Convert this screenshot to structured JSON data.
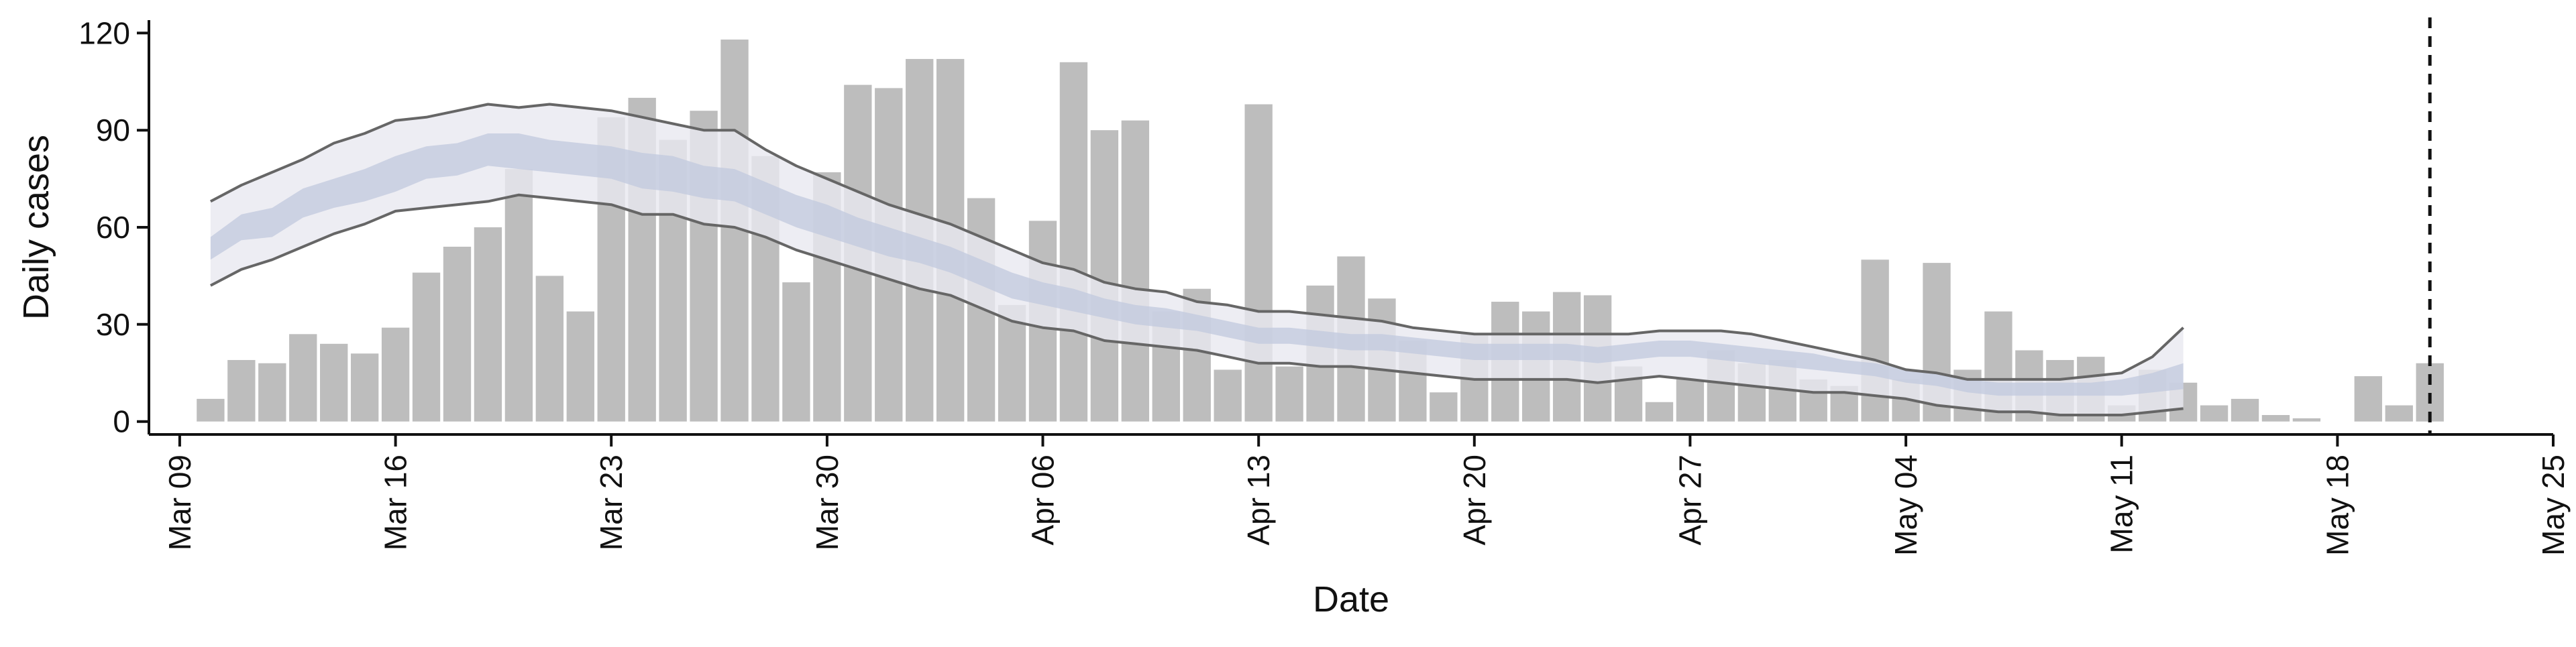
{
  "chart_data": {
    "type": "bar",
    "xlabel": "Date",
    "ylabel": "Daily cases",
    "ylim": [
      -4,
      124
    ],
    "xlim": [
      "2020-03-08",
      "2020-05-25"
    ],
    "xticks": [
      {
        "date": "2020-03-09",
        "label": "Mar 09"
      },
      {
        "date": "2020-03-16",
        "label": "Mar 16"
      },
      {
        "date": "2020-03-23",
        "label": "Mar 23"
      },
      {
        "date": "2020-03-30",
        "label": "Mar 30"
      },
      {
        "date": "2020-04-06",
        "label": "Apr 06"
      },
      {
        "date": "2020-04-13",
        "label": "Apr 13"
      },
      {
        "date": "2020-04-20",
        "label": "Apr 20"
      },
      {
        "date": "2020-04-27",
        "label": "Apr 27"
      },
      {
        "date": "2020-05-04",
        "label": "May 04"
      },
      {
        "date": "2020-05-11",
        "label": "May 11"
      },
      {
        "date": "2020-05-18",
        "label": "May 18"
      },
      {
        "date": "2020-05-25",
        "label": "May 25"
      }
    ],
    "yticks": [
      0,
      30,
      60,
      90,
      120
    ],
    "bars": {
      "dates": [
        "2020-03-10",
        "2020-03-11",
        "2020-03-12",
        "2020-03-13",
        "2020-03-14",
        "2020-03-15",
        "2020-03-16",
        "2020-03-17",
        "2020-03-18",
        "2020-03-19",
        "2020-03-20",
        "2020-03-21",
        "2020-03-22",
        "2020-03-23",
        "2020-03-24",
        "2020-03-25",
        "2020-03-26",
        "2020-03-27",
        "2020-03-28",
        "2020-03-29",
        "2020-03-30",
        "2020-03-31",
        "2020-04-01",
        "2020-04-02",
        "2020-04-03",
        "2020-04-04",
        "2020-04-05",
        "2020-04-06",
        "2020-04-07",
        "2020-04-08",
        "2020-04-09",
        "2020-04-10",
        "2020-04-11",
        "2020-04-12",
        "2020-04-13",
        "2020-04-14",
        "2020-04-15",
        "2020-04-16",
        "2020-04-17",
        "2020-04-18",
        "2020-04-19",
        "2020-04-20",
        "2020-04-21",
        "2020-04-22",
        "2020-04-23",
        "2020-04-24",
        "2020-04-25",
        "2020-04-26",
        "2020-04-27",
        "2020-04-28",
        "2020-04-29",
        "2020-04-30",
        "2020-05-01",
        "2020-05-02",
        "2020-05-03",
        "2020-05-04",
        "2020-05-05",
        "2020-05-06",
        "2020-05-07",
        "2020-05-08",
        "2020-05-09",
        "2020-05-10",
        "2020-05-11",
        "2020-05-12",
        "2020-05-13",
        "2020-05-14",
        "2020-05-15",
        "2020-05-16",
        "2020-05-17",
        "2020-05-18",
        "2020-05-19",
        "2020-05-20",
        "2020-05-21"
      ],
      "values": [
        7,
        19,
        18,
        27,
        24,
        21,
        29,
        46,
        54,
        60,
        78,
        45,
        34,
        94,
        100,
        87,
        96,
        118,
        82,
        43,
        77,
        104,
        103,
        112,
        112,
        69,
        36,
        62,
        111,
        90,
        93,
        34,
        41,
        16,
        98,
        17,
        42,
        51,
        38,
        25,
        9,
        27,
        37,
        34,
        40,
        39,
        17,
        6,
        13,
        22,
        18,
        19,
        13,
        11,
        50,
        13,
        49,
        16,
        34,
        22,
        19,
        20,
        5,
        16,
        12,
        5,
        7,
        2,
        1,
        0,
        14,
        5,
        18
      ],
      "color": "#bdbdbd"
    },
    "series": [
      {
        "dates": [
          "2020-03-10",
          "2020-03-11",
          "2020-03-12",
          "2020-03-13",
          "2020-03-14",
          "2020-03-15",
          "2020-03-16",
          "2020-03-17",
          "2020-03-18",
          "2020-03-19",
          "2020-03-20",
          "2020-03-21",
          "2020-03-22",
          "2020-03-23",
          "2020-03-24",
          "2020-03-25",
          "2020-03-26",
          "2020-03-27",
          "2020-03-28",
          "2020-03-29",
          "2020-03-30",
          "2020-03-31",
          "2020-04-01",
          "2020-04-02",
          "2020-04-03",
          "2020-04-04",
          "2020-04-05",
          "2020-04-06",
          "2020-04-07",
          "2020-04-08",
          "2020-04-09",
          "2020-04-10",
          "2020-04-11",
          "2020-04-12",
          "2020-04-13",
          "2020-04-14",
          "2020-04-15",
          "2020-04-16",
          "2020-04-17",
          "2020-04-18",
          "2020-04-19",
          "2020-04-20",
          "2020-04-21",
          "2020-04-22",
          "2020-04-23",
          "2020-04-24",
          "2020-04-25",
          "2020-04-26",
          "2020-04-27",
          "2020-04-28",
          "2020-04-29",
          "2020-04-30",
          "2020-05-01",
          "2020-05-02",
          "2020-05-03",
          "2020-05-04",
          "2020-05-05",
          "2020-05-06",
          "2020-05-07",
          "2020-05-08",
          "2020-05-09",
          "2020-05-10",
          "2020-05-11",
          "2020-05-12",
          "2020-05-13"
        ],
        "outer_low": [
          42,
          47,
          50,
          54,
          58,
          61,
          65,
          66,
          67,
          68,
          70,
          69,
          68,
          67,
          64,
          64,
          61,
          60,
          57,
          53,
          50,
          47,
          44,
          41,
          39,
          35,
          31,
          29,
          28,
          25,
          24,
          23,
          22,
          20,
          18,
          18,
          17,
          17,
          16,
          15,
          14,
          13,
          13,
          13,
          13,
          12,
          13,
          14,
          13,
          12,
          11,
          10,
          9,
          9,
          8,
          7,
          5,
          4,
          3,
          3,
          2,
          2,
          2,
          3,
          4
        ],
        "outer_high": [
          68,
          73,
          77,
          81,
          86,
          89,
          93,
          94,
          96,
          98,
          97,
          98,
          97,
          96,
          94,
          92,
          90,
          90,
          84,
          79,
          75,
          71,
          67,
          64,
          61,
          57,
          53,
          49,
          47,
          43,
          41,
          40,
          37,
          36,
          34,
          34,
          33,
          32,
          31,
          29,
          28,
          27,
          27,
          27,
          27,
          27,
          27,
          28,
          28,
          28,
          27,
          25,
          23,
          21,
          19,
          16,
          15,
          13,
          13,
          13,
          13,
          14,
          15,
          20,
          29
        ],
        "inner_low": [
          50,
          56,
          57,
          63,
          66,
          68,
          71,
          75,
          76,
          79,
          78,
          77,
          76,
          75,
          72,
          71,
          69,
          68,
          64,
          60,
          57,
          54,
          51,
          49,
          46,
          42,
          38,
          36,
          34,
          32,
          30,
          29,
          28,
          26,
          24,
          24,
          23,
          22,
          22,
          21,
          20,
          19,
          19,
          19,
          19,
          18,
          19,
          20,
          20,
          19,
          18,
          17,
          16,
          15,
          14,
          12,
          11,
          9,
          8,
          8,
          8,
          8,
          8,
          9,
          10
        ],
        "inner_high": [
          57,
          64,
          66,
          72,
          75,
          78,
          82,
          85,
          86,
          89,
          89,
          87,
          86,
          85,
          83,
          82,
          79,
          78,
          74,
          70,
          67,
          63,
          60,
          57,
          54,
          50,
          46,
          43,
          41,
          38,
          36,
          35,
          33,
          31,
          29,
          29,
          28,
          27,
          27,
          26,
          25,
          24,
          24,
          24,
          24,
          23,
          24,
          25,
          25,
          24,
          23,
          22,
          21,
          19,
          18,
          16,
          15,
          13,
          12,
          12,
          12,
          12,
          13,
          15,
          18
        ],
        "band_outer_color": "#e8e9f0",
        "band_inner_color": "#c3cbdf",
        "line_color": "#666666"
      }
    ],
    "vline": {
      "date": "2020-05-21",
      "style": "dashed"
    },
    "grid": false
  }
}
